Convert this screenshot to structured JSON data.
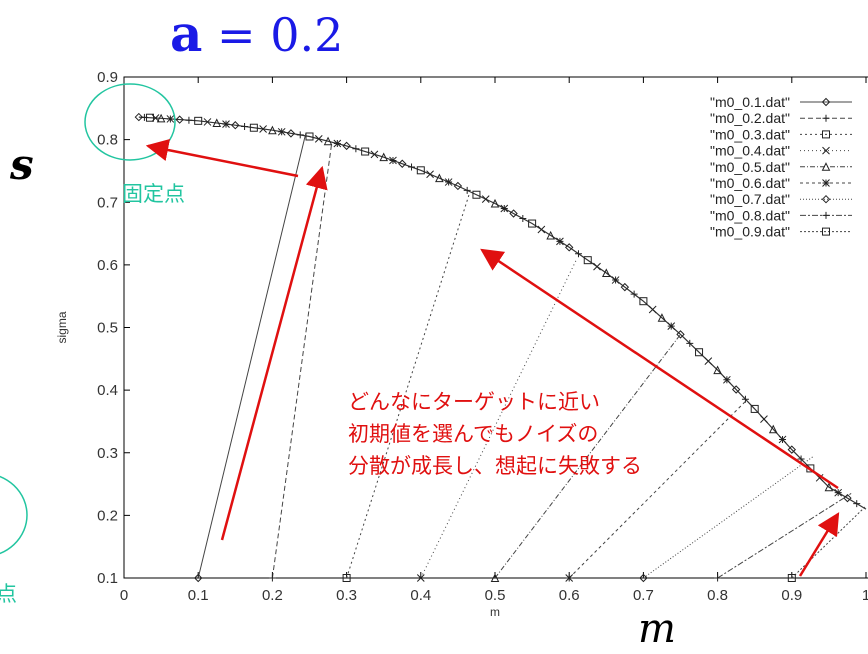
{
  "title": {
    "lhs": "a",
    "rhs": "= 0.2"
  },
  "y_symbol": "s",
  "x_symbol": "m",
  "annotations": {
    "fixed_point": "固定点",
    "fixed_point_cut": "点",
    "main_lines": [
      "どんなにターゲットに近い",
      "初期値を選んでもノイズの",
      "分散が成長し、想起に失敗する"
    ]
  },
  "colors": {
    "title": "#1a1ae6",
    "annotation_red": "#e01010",
    "annotation_teal": "#22c5a0"
  },
  "chart_data": {
    "type": "line",
    "xlabel": "m",
    "ylabel": "sigma",
    "xlim": [
      0,
      1.0
    ],
    "ylim": [
      0.1,
      0.9
    ],
    "x_ticks": [
      "0",
      "0.1",
      "0.2",
      "0.3",
      "0.4",
      "0.5",
      "0.6",
      "0.7",
      "0.8",
      "0.9",
      "1"
    ],
    "y_ticks": [
      "0.1",
      "0.2",
      "0.3",
      "0.4",
      "0.5",
      "0.6",
      "0.7",
      "0.8",
      "0.9"
    ],
    "legend_position": "top-right",
    "series": [
      {
        "name": "\"m0_0.1.dat\"",
        "marker": "diamond",
        "start": [
          0.1,
          0.1
        ],
        "join": [
          0.245,
          0.81
        ]
      },
      {
        "name": "\"m0_0.2.dat\"",
        "marker": "plus",
        "start": [
          0.2,
          0.1
        ],
        "join": [
          0.28,
          0.795
        ]
      },
      {
        "name": "\"m0_0.3.dat\"",
        "marker": "square",
        "start": [
          0.3,
          0.1
        ],
        "join": [
          0.465,
          0.712
        ]
      },
      {
        "name": "\"m0_0.4.dat\"",
        "marker": "cross",
        "start": [
          0.4,
          0.1
        ],
        "join": [
          0.61,
          0.609
        ]
      },
      {
        "name": "\"m0_0.5.dat\"",
        "marker": "triangle",
        "start": [
          0.5,
          0.1
        ],
        "join": [
          0.75,
          0.489
        ]
      },
      {
        "name": "\"m0_0.6.dat\"",
        "marker": "star",
        "start": [
          0.6,
          0.1
        ],
        "join": [
          0.84,
          0.385
        ]
      },
      {
        "name": "\"m0_0.7.dat\"",
        "marker": "diamond",
        "start": [
          0.7,
          0.1
        ],
        "join": [
          0.93,
          0.295
        ]
      },
      {
        "name": "\"m0_0.8.dat\"",
        "marker": "plus",
        "start": [
          0.8,
          0.1
        ],
        "join": [
          0.98,
          0.235
        ]
      },
      {
        "name": "\"m0_0.9.dat\"",
        "marker": "square",
        "start": [
          0.9,
          0.1
        ],
        "join": [
          1.0,
          0.215
        ]
      }
    ],
    "envelope": {
      "x": [
        0.02,
        0.05,
        0.1,
        0.15,
        0.2,
        0.25,
        0.3,
        0.35,
        0.4,
        0.45,
        0.5,
        0.55,
        0.6,
        0.65,
        0.7,
        0.75,
        0.8,
        0.85,
        0.9,
        0.95,
        1.0
      ],
      "y": [
        0.836,
        0.834,
        0.83,
        0.823,
        0.815,
        0.805,
        0.79,
        0.772,
        0.751,
        0.726,
        0.698,
        0.666,
        0.628,
        0.587,
        0.542,
        0.489,
        0.432,
        0.37,
        0.305,
        0.245,
        0.21
      ]
    }
  }
}
